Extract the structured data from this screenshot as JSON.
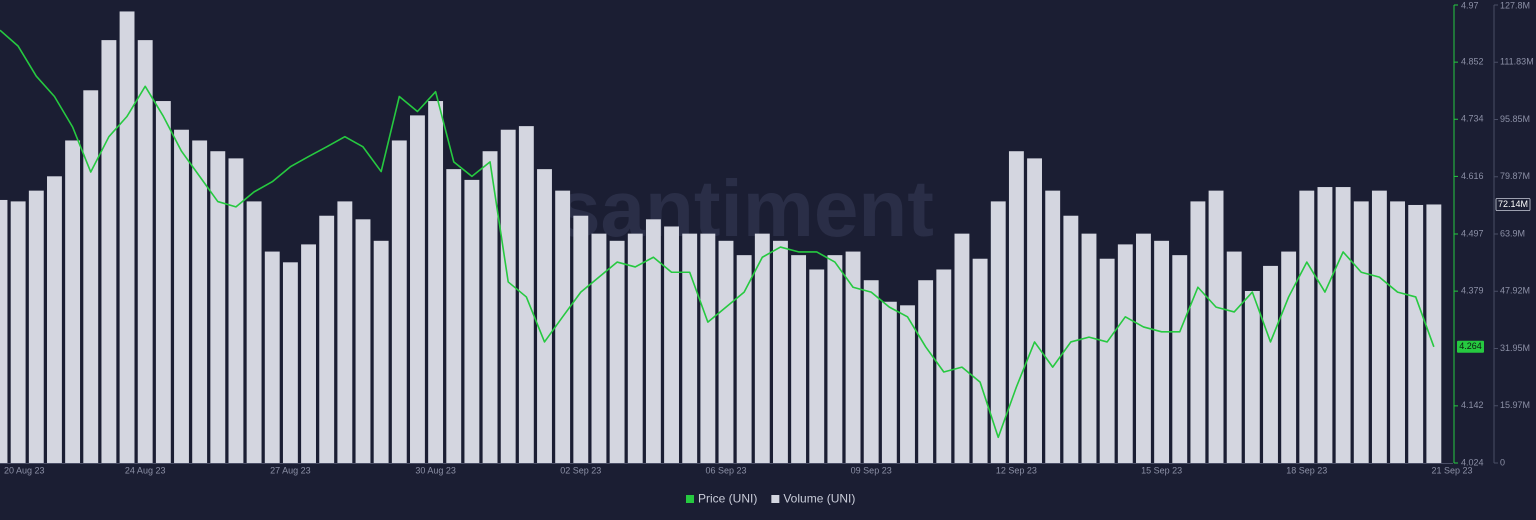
{
  "chart_data": {
    "type": "bar-line",
    "watermark": "santiment",
    "categories": [
      "20 Aug 23",
      null,
      null,
      null,
      null,
      null,
      null,
      null,
      "24 Aug 23",
      null,
      null,
      null,
      null,
      null,
      null,
      null,
      "27 Aug 23",
      null,
      null,
      null,
      null,
      null,
      null,
      null,
      "30 Aug 23",
      null,
      null,
      null,
      null,
      null,
      null,
      null,
      "02 Sep 23",
      null,
      null,
      null,
      null,
      null,
      null,
      null,
      "06 Sep 23",
      null,
      null,
      null,
      null,
      null,
      null,
      null,
      "09 Sep 23",
      null,
      null,
      null,
      null,
      null,
      null,
      null,
      "12 Sep 23",
      null,
      null,
      null,
      null,
      null,
      null,
      null,
      "15 Sep 23",
      null,
      null,
      null,
      null,
      null,
      null,
      null,
      "18 Sep 23",
      null,
      null,
      null,
      null,
      null,
      null,
      null,
      "21 Sep 23"
    ],
    "series": [
      {
        "name": "Price (UNI)",
        "color": "#26c940",
        "kind": "line",
        "axis": "y",
        "current_label": "4.264",
        "values": [
          4.918,
          4.885,
          4.823,
          4.781,
          4.718,
          4.625,
          4.698,
          4.74,
          4.802,
          4.74,
          4.668,
          4.616,
          4.564,
          4.553,
          4.584,
          4.605,
          4.636,
          4.657,
          4.677,
          4.698,
          4.677,
          4.626,
          4.781,
          4.75,
          4.791,
          4.646,
          4.616,
          4.646,
          4.398,
          4.367,
          4.274,
          4.326,
          4.377,
          4.408,
          4.439,
          4.429,
          4.449,
          4.418,
          4.418,
          4.315,
          4.346,
          4.377,
          4.449,
          4.47,
          4.46,
          4.46,
          4.439,
          4.387,
          4.377,
          4.346,
          4.326,
          4.264,
          4.212,
          4.222,
          4.191,
          4.077,
          4.181,
          4.274,
          4.222,
          4.274,
          4.284,
          4.274,
          4.326,
          4.305,
          4.295,
          4.295,
          4.387,
          4.346,
          4.336,
          4.377,
          4.274,
          4.367,
          4.439,
          4.377,
          4.46,
          4.418,
          4.408,
          4.377,
          4.367,
          4.264,
          null
        ]
      },
      {
        "name": "Volume (UNI)",
        "color": "#d4d6e0",
        "kind": "bar",
        "axis": "y2",
        "current_label": "72.14M",
        "values": [
          73.4,
          73,
          76,
          80,
          90,
          104,
          118,
          126,
          118,
          101,
          93,
          90,
          87,
          85,
          73,
          59,
          56,
          61,
          69,
          73,
          68,
          62,
          90,
          97,
          101,
          82,
          79,
          87,
          93,
          94,
          82,
          76,
          69,
          64,
          62,
          64,
          68,
          66,
          64,
          64,
          62,
          58,
          64,
          62,
          58,
          54,
          58,
          59,
          51,
          45,
          44,
          51,
          54,
          64,
          57,
          73,
          87,
          85,
          76,
          69,
          64,
          57,
          61,
          64,
          62,
          58,
          73,
          76,
          59,
          48,
          55,
          59,
          76,
          77,
          77,
          73,
          76,
          73,
          72,
          72.14,
          null
        ]
      }
    ],
    "ylim": [
      4.024,
      4.97
    ],
    "yticks": [
      4.024,
      4.142,
      4.379,
      4.497,
      4.616,
      4.734,
      4.852,
      4.97
    ],
    "y2lim": [
      0,
      127.8
    ],
    "y2ticks": [
      0,
      {
        "value": 15.97,
        "label": "15.97M"
      },
      {
        "value": 31.95,
        "label": "31.95M"
      },
      {
        "value": 47.92,
        "label": "47.92M"
      },
      {
        "value": 63.9,
        "label": "63.9M"
      },
      {
        "value": 79.87,
        "label": "79.87M"
      },
      {
        "value": 95.85,
        "label": "95.85M"
      },
      {
        "value": 111.83,
        "label": "111.83M"
      },
      {
        "value": 127.8,
        "label": "127.8M"
      }
    ],
    "legend": "bottom"
  }
}
